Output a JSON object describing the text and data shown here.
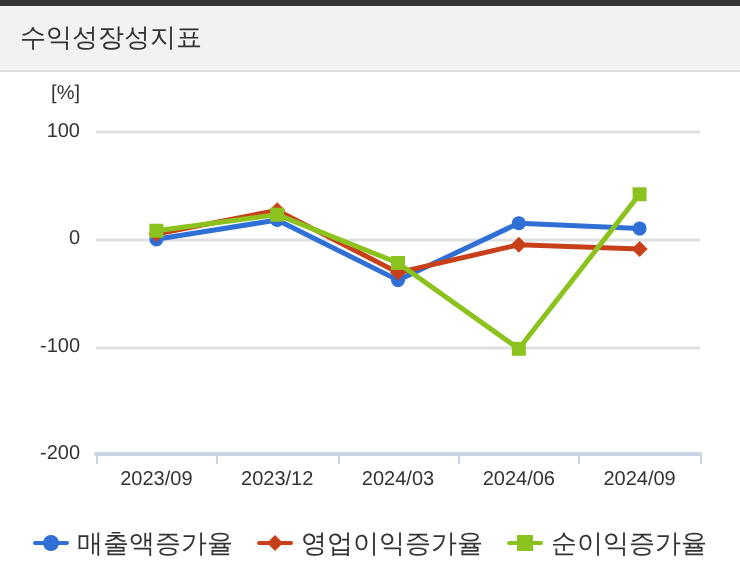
{
  "chart_data": {
    "type": "line",
    "title": "수익성장성지표",
    "ylabel": "[%]",
    "categories": [
      "2023/09",
      "2023/12",
      "2024/03",
      "2024/06",
      "2024/09"
    ],
    "series": [
      {
        "name": "매출액증가율",
        "color": "#2f6fd6",
        "marker": "circle",
        "values": [
          0,
          18,
          -38,
          15,
          10
        ]
      },
      {
        "name": "영업이익증가율",
        "color": "#c8401a",
        "marker": "diamond",
        "values": [
          5,
          27,
          -31,
          -5,
          -9
        ]
      },
      {
        "name": "순이익증가율",
        "color": "#8cc21e",
        "marker": "square",
        "values": [
          8,
          23,
          -22,
          -102,
          42
        ]
      }
    ],
    "ylim": [
      -200,
      100
    ],
    "yticks": [
      -200,
      -100,
      0,
      100
    ],
    "grid": "y",
    "legend": "bottom",
    "line_style": "solid"
  }
}
